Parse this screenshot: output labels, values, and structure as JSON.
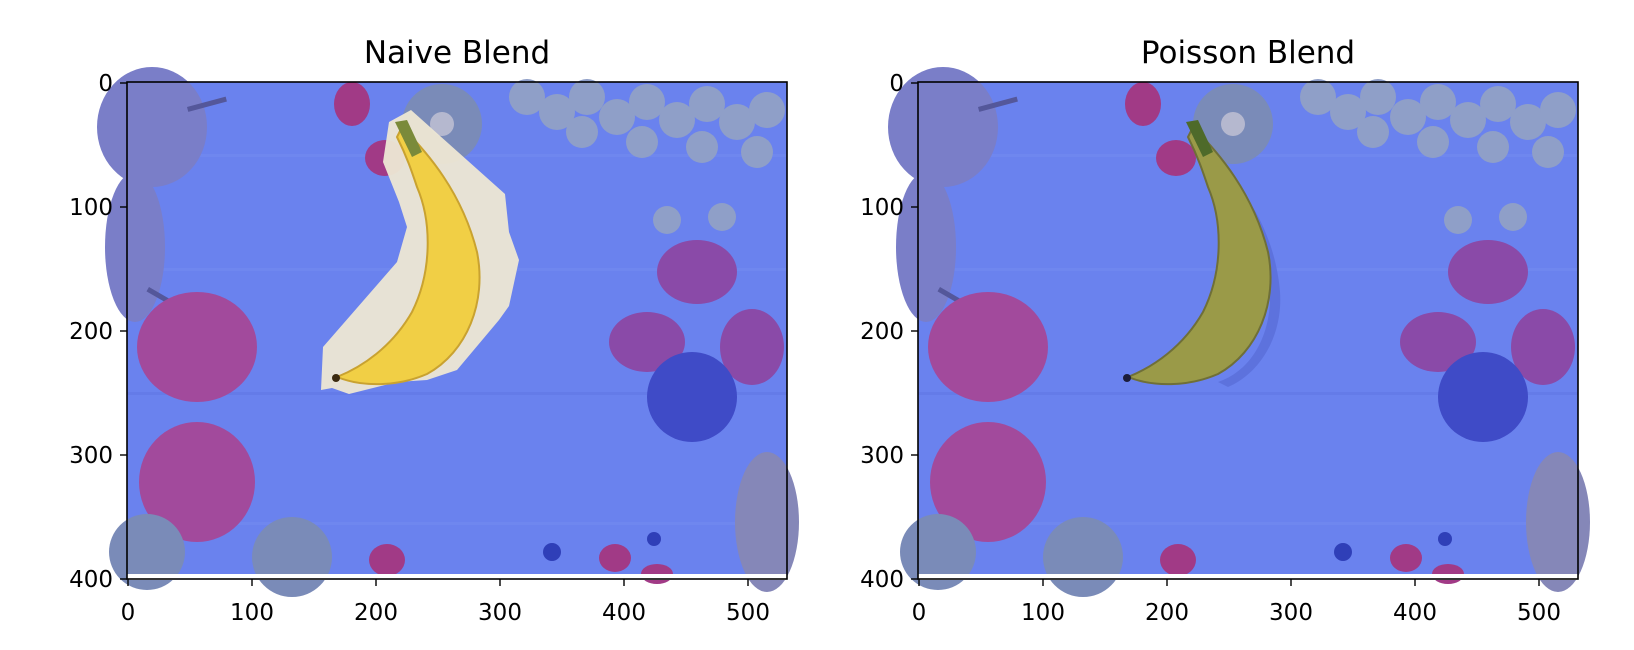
{
  "figure": {
    "panels": [
      {
        "title": "Naive Blend",
        "x_ticks": [
          "0",
          "100",
          "200",
          "300",
          "400",
          "500"
        ],
        "y_ticks": [
          "0",
          "100",
          "200",
          "300",
          "400"
        ],
        "xlim": [
          0,
          533
        ],
        "ylim": [
          400,
          0
        ],
        "banana_style": "naive-cutout"
      },
      {
        "title": "Poisson Blend",
        "x_ticks": [
          "0",
          "100",
          "200",
          "300",
          "400",
          "500"
        ],
        "y_ticks": [
          "0",
          "100",
          "200",
          "300",
          "400"
        ],
        "xlim": [
          0,
          533
        ],
        "ylim": [
          400,
          0
        ],
        "banana_style": "poisson-blended"
      }
    ],
    "colors": {
      "background_tint": "#6a82ee",
      "banana_naive": "#f1cf45",
      "banana_poisson": "#9a9a48",
      "cutout_halo": "#ece6d3"
    }
  }
}
